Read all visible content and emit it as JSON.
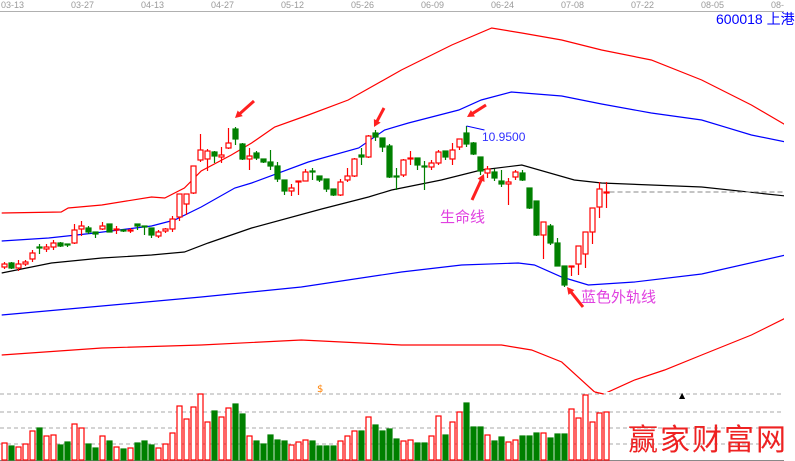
{
  "chart_data": {
    "type": "candlestick",
    "title": "",
    "stock_code_label": "600018 上港",
    "x_tick_labels": [
      "03-13",
      "03-27",
      "04-13",
      "04-27",
      "05-12",
      "05-26",
      "06-09",
      "06-24",
      "07-08",
      "07-22",
      "08-05",
      "08-"
    ],
    "x_tick_every_n_days": 10,
    "colors": {
      "up": "#ff0000",
      "down": "#008000",
      "band_outer": "#ff0000",
      "band_inner": "#0000ff",
      "middle": "#000000",
      "annotation": "#e040e0",
      "price_label": "#3030ff"
    },
    "candles_ohlc": [
      [
        9.54,
        9.59,
        9.52,
        9.57
      ],
      [
        9.58,
        9.59,
        9.52,
        9.53
      ],
      [
        9.53,
        9.61,
        9.5,
        9.57
      ],
      [
        9.57,
        9.61,
        9.55,
        9.59
      ],
      [
        9.62,
        9.71,
        9.59,
        9.68
      ],
      [
        9.74,
        9.77,
        9.67,
        9.73
      ],
      [
        9.72,
        9.77,
        9.69,
        9.74
      ],
      [
        9.74,
        9.81,
        9.71,
        9.78
      ],
      [
        9.78,
        9.79,
        9.74,
        9.75
      ],
      [
        9.77,
        9.77,
        9.74,
        9.76
      ],
      [
        9.78,
        9.97,
        9.77,
        9.91
      ],
      [
        9.92,
        10.0,
        9.85,
        9.95
      ],
      [
        9.93,
        9.95,
        9.87,
        9.89
      ],
      [
        9.89,
        9.89,
        9.83,
        9.87
      ],
      [
        9.92,
        9.99,
        9.91,
        9.95
      ],
      [
        9.97,
        9.97,
        9.89,
        9.89
      ],
      [
        9.91,
        9.95,
        9.87,
        9.92
      ],
      [
        9.91,
        9.92,
        9.89,
        9.9
      ],
      [
        9.9,
        9.93,
        9.88,
        9.91
      ],
      [
        9.97,
        9.97,
        9.91,
        9.95
      ],
      [
        9.95,
        9.95,
        9.86,
        9.94
      ],
      [
        9.93,
        9.93,
        9.83,
        9.86
      ],
      [
        9.85,
        9.91,
        9.83,
        9.89
      ],
      [
        9.9,
        9.93,
        9.88,
        9.92
      ],
      [
        9.92,
        10.05,
        9.89,
        10.02
      ],
      [
        10.04,
        10.27,
        10.0,
        10.27
      ],
      [
        10.17,
        10.27,
        10.06,
        10.27
      ],
      [
        10.28,
        10.55,
        10.27,
        10.55
      ],
      [
        10.61,
        10.87,
        10.59,
        10.71
      ],
      [
        10.62,
        10.72,
        10.5,
        10.7
      ],
      [
        10.69,
        10.7,
        10.58,
        10.65
      ],
      [
        10.64,
        10.74,
        10.58,
        10.66
      ],
      [
        10.73,
        10.93,
        10.72,
        10.78
      ],
      [
        10.92,
        10.94,
        10.76,
        10.82
      ],
      [
        10.77,
        10.78,
        10.61,
        10.62
      ],
      [
        10.62,
        10.73,
        10.51,
        10.65
      ],
      [
        10.68,
        10.7,
        10.61,
        10.63
      ],
      [
        10.62,
        10.62,
        10.58,
        10.59
      ],
      [
        10.59,
        10.71,
        10.51,
        10.55
      ],
      [
        10.55,
        10.59,
        10.39,
        10.42
      ],
      [
        10.41,
        10.41,
        10.26,
        10.3
      ],
      [
        10.3,
        10.37,
        10.25,
        10.33
      ],
      [
        10.39,
        10.4,
        10.26,
        10.4
      ],
      [
        10.4,
        10.52,
        10.4,
        10.49
      ],
      [
        10.5,
        10.53,
        10.41,
        10.49
      ],
      [
        10.45,
        10.45,
        10.39,
        10.41
      ],
      [
        10.42,
        10.42,
        10.29,
        10.32
      ],
      [
        10.32,
        10.32,
        10.25,
        10.26
      ],
      [
        10.26,
        10.42,
        10.25,
        10.39
      ],
      [
        10.41,
        10.53,
        10.39,
        10.45
      ],
      [
        10.45,
        10.63,
        10.44,
        10.62
      ],
      [
        10.66,
        10.73,
        10.56,
        10.64
      ],
      [
        10.64,
        10.86,
        10.63,
        10.85
      ],
      [
        10.88,
        10.91,
        10.8,
        10.84
      ],
      [
        10.83,
        10.83,
        10.69,
        10.74
      ],
      [
        10.75,
        10.77,
        10.43,
        10.44
      ],
      [
        10.45,
        10.53,
        10.31,
        10.44
      ],
      [
        10.46,
        10.62,
        10.44,
        10.61
      ],
      [
        10.62,
        10.7,
        10.56,
        10.63
      ],
      [
        10.63,
        10.63,
        10.51,
        10.56
      ],
      [
        10.55,
        10.6,
        10.31,
        10.54
      ],
      [
        10.54,
        10.61,
        10.51,
        10.58
      ],
      [
        10.58,
        10.71,
        10.56,
        10.69
      ],
      [
        10.7,
        10.7,
        10.61,
        10.64
      ],
      [
        10.62,
        10.78,
        10.56,
        10.71
      ],
      [
        10.74,
        10.82,
        10.71,
        10.82
      ],
      [
        10.88,
        10.95,
        10.74,
        10.77
      ],
      [
        10.78,
        10.79,
        10.66,
        10.67
      ],
      [
        10.64,
        10.64,
        10.46,
        10.5
      ],
      [
        10.48,
        10.55,
        10.43,
        10.52
      ],
      [
        10.49,
        10.52,
        10.4,
        10.43
      ],
      [
        10.4,
        10.51,
        10.34,
        10.37
      ],
      [
        10.37,
        10.43,
        10.16,
        10.39
      ],
      [
        10.44,
        10.51,
        10.41,
        10.49
      ],
      [
        10.48,
        10.51,
        10.4,
        10.41
      ],
      [
        10.33,
        10.33,
        10.12,
        10.13
      ],
      [
        10.2,
        10.2,
        9.85,
        9.86
      ],
      [
        9.86,
        9.99,
        9.62,
        9.99
      ],
      [
        9.95,
        9.97,
        9.76,
        9.78
      ],
      [
        9.78,
        9.83,
        9.55,
        9.55
      ],
      [
        9.55,
        9.55,
        9.34,
        9.36
      ],
      [
        9.54,
        9.55,
        9.45,
        9.55
      ],
      [
        9.57,
        9.75,
        9.46,
        9.75
      ],
      [
        9.67,
        9.89,
        9.53,
        9.89
      ],
      [
        9.89,
        10.13,
        9.77,
        10.13
      ],
      [
        10.14,
        10.39,
        10.03,
        10.32
      ],
      [
        10.28,
        10.39,
        10.13,
        10.29
      ]
    ],
    "volume": [
      17,
      14,
      13,
      16,
      29,
      32,
      24,
      25,
      15,
      18,
      36,
      32,
      16,
      12,
      24,
      19,
      13,
      11,
      12,
      17,
      19,
      15,
      12,
      16,
      27,
      54,
      41,
      53,
      66,
      38,
      49,
      43,
      52,
      56,
      46,
      24,
      19,
      16,
      25,
      20,
      19,
      15,
      18,
      20,
      19,
      14,
      14,
      14,
      19,
      24,
      29,
      29,
      43,
      35,
      29,
      31,
      21,
      19,
      20,
      17,
      17,
      24,
      44,
      25,
      38,
      48,
      57,
      33,
      33,
      25,
      19,
      23,
      18,
      20,
      24,
      24,
      27,
      27,
      22,
      26,
      26,
      51,
      42,
      65,
      38,
      47,
      48
    ],
    "volume_gridlines": [
      16,
      32,
      48,
      66
    ],
    "bands": {
      "upper_outer": [
        [
          -0.4,
          10.08
        ],
        [
          8.1,
          10.09
        ],
        [
          9.1,
          10.13
        ],
        [
          13.9,
          10.16
        ],
        [
          21,
          10.24
        ],
        [
          22.9,
          10.23
        ],
        [
          25.7,
          10.33
        ],
        [
          28.1,
          10.5
        ],
        [
          32.4,
          10.66
        ],
        [
          35.3,
          10.78
        ],
        [
          38.6,
          10.94
        ],
        [
          43.4,
          11.06
        ],
        [
          49.1,
          11.21
        ],
        [
          56.7,
          11.51
        ],
        [
          63.9,
          11.76
        ],
        [
          69.6,
          11.93
        ],
        [
          73.9,
          11.88
        ],
        [
          79.6,
          11.81
        ],
        [
          85.3,
          11.71
        ],
        [
          92.4,
          11.61
        ],
        [
          99.6,
          11.41
        ],
        [
          106.7,
          11.16
        ],
        [
          111.6,
          10.96
        ]
      ],
      "upper_inner": [
        [
          -0.4,
          9.8
        ],
        [
          6.3,
          9.83
        ],
        [
          12.9,
          9.88
        ],
        [
          21,
          9.95
        ],
        [
          24.3,
          10.01
        ],
        [
          28.1,
          10.14
        ],
        [
          32.9,
          10.33
        ],
        [
          35.3,
          10.38
        ],
        [
          43.4,
          10.59
        ],
        [
          50.6,
          10.73
        ],
        [
          54.3,
          10.91
        ],
        [
          57.7,
          10.98
        ],
        [
          64.9,
          11.11
        ],
        [
          68.1,
          11.21
        ],
        [
          72.4,
          11.29
        ],
        [
          79.6,
          11.25
        ],
        [
          85.3,
          11.17
        ],
        [
          92.4,
          11.08
        ],
        [
          99.6,
          11.01
        ],
        [
          106.7,
          10.86
        ],
        [
          111.6,
          10.79
        ]
      ],
      "middle": [
        [
          -0.4,
          9.48
        ],
        [
          6.7,
          9.58
        ],
        [
          13.9,
          9.63
        ],
        [
          21,
          9.66
        ],
        [
          25.7,
          9.69
        ],
        [
          29.1,
          9.78
        ],
        [
          35.3,
          9.93
        ],
        [
          45.3,
          10.12
        ],
        [
          52,
          10.24
        ],
        [
          55.3,
          10.31
        ],
        [
          62.4,
          10.41
        ],
        [
          68.1,
          10.51
        ],
        [
          73.9,
          10.56
        ],
        [
          81.4,
          10.41
        ],
        [
          85.3,
          10.38
        ],
        [
          92.4,
          10.36
        ],
        [
          99.6,
          10.34
        ],
        [
          111.6,
          10.25
        ]
      ],
      "lower_inner": [
        [
          -0.4,
          9.06
        ],
        [
          13.9,
          9.15
        ],
        [
          28.1,
          9.24
        ],
        [
          42.4,
          9.34
        ],
        [
          56.7,
          9.49
        ],
        [
          65.3,
          9.56
        ],
        [
          73.4,
          9.58
        ],
        [
          75.7,
          9.56
        ],
        [
          79.6,
          9.44
        ],
        [
          83.4,
          9.36
        ],
        [
          90,
          9.39
        ],
        [
          99.6,
          9.47
        ],
        [
          111.6,
          9.66
        ]
      ],
      "lower_outer": [
        [
          -0.4,
          8.66
        ],
        [
          13.9,
          8.73
        ],
        [
          28.1,
          8.76
        ],
        [
          42.4,
          8.81
        ],
        [
          56.7,
          8.76
        ],
        [
          71,
          8.76
        ],
        [
          75.3,
          8.71
        ],
        [
          79.6,
          8.59
        ],
        [
          84.3,
          8.29
        ],
        [
          85.6,
          8.27
        ],
        [
          90,
          8.41
        ],
        [
          94.3,
          8.51
        ],
        [
          99.6,
          8.66
        ],
        [
          106.7,
          8.86
        ],
        [
          111.6,
          9.03
        ]
      ]
    },
    "last_price_line": 10.29,
    "annotations": {
      "high_label": "10.9500",
      "high_value": 10.95,
      "life_line_label": "生命线",
      "blue_outer_band_label": "蓝色外轨线"
    },
    "markers": {
      "dollar_symbol": "$",
      "triangle": "▲"
    }
  },
  "watermark": "赢家财富网"
}
